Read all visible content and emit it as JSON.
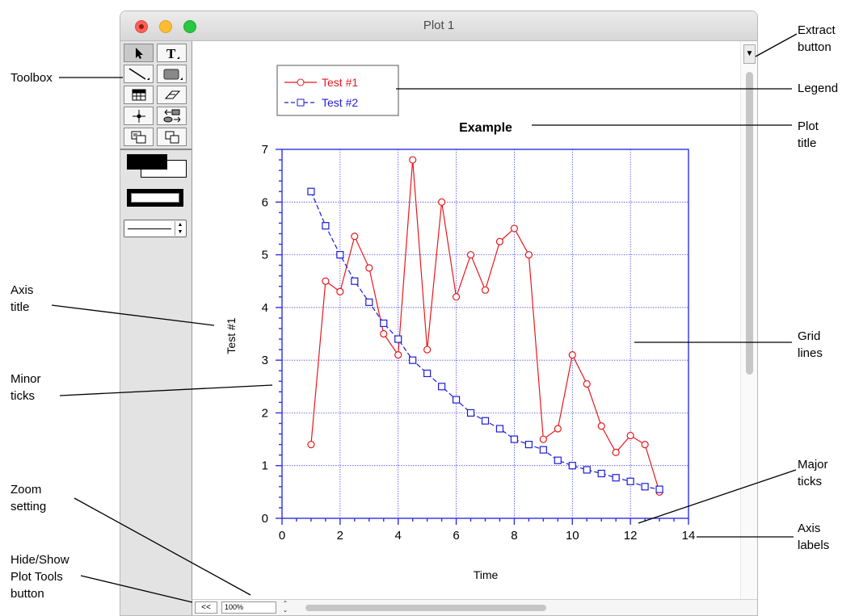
{
  "window": {
    "title": "Plot 1"
  },
  "annotations": {
    "extract_button": "Extract\nbutton",
    "toolbox": "Toolbox",
    "legend": "Legend",
    "plot_title": "Plot\ntitle",
    "axis_title": "Axis\ntitle",
    "grid_lines": "Grid\nlines",
    "minor_ticks": "Minor\nticks",
    "major_ticks": "Major\nticks",
    "zoom_setting": "Zoom\nsetting",
    "axis_labels": "Axis\nlabels",
    "hide_show": "Hide/Show\nPlot Tools\nbutton"
  },
  "bottom": {
    "hide_label": "<<",
    "zoom_value": "100%"
  },
  "icons": {
    "extract": "extract-icon",
    "tools": [
      "arrow-icon",
      "text-icon",
      "line-icon",
      "rectangle-icon",
      "table-icon",
      "eraser-icon",
      "crosshair-icon",
      "link-icon",
      "group-icon",
      "ungroup-icon"
    ]
  },
  "chart_data": {
    "type": "line",
    "title": "Example",
    "xlabel": "Time",
    "ylabel": "Test #1",
    "xlim": [
      0,
      14
    ],
    "ylim": [
      0,
      7
    ],
    "xticks": [
      0,
      2,
      4,
      6,
      8,
      10,
      12,
      14
    ],
    "yticks": [
      0,
      1,
      2,
      3,
      4,
      5,
      6,
      7
    ],
    "grid": true,
    "legend_position": "top-left",
    "series": [
      {
        "name": "Test #1",
        "color": "#e8181c",
        "marker": "circle",
        "x": [
          1,
          1.5,
          2,
          2.5,
          3,
          3.5,
          4,
          4.5,
          5,
          5.5,
          6,
          6.5,
          7,
          7.5,
          8,
          8.5,
          9,
          9.5,
          10,
          10.5,
          11,
          11.5,
          12,
          12.5,
          13
        ],
        "y": [
          1.4,
          4.5,
          4.3,
          5.35,
          4.75,
          3.5,
          3.1,
          6.8,
          3.2,
          6.0,
          4.2,
          5.0,
          4.33,
          5.25,
          5.5,
          5.0,
          1.5,
          1.7,
          3.1,
          2.55,
          1.75,
          1.25,
          1.57,
          1.4,
          0.5
        ]
      },
      {
        "name": "Test #2",
        "color": "#1c1cd8",
        "marker": "square",
        "dash": true,
        "x": [
          1,
          1.5,
          2,
          2.5,
          3,
          3.5,
          4,
          4.5,
          5,
          5.5,
          6,
          6.5,
          7,
          7.5,
          8,
          8.5,
          9,
          9.5,
          10,
          10.5,
          11,
          11.5,
          12,
          12.5,
          13
        ],
        "y": [
          6.2,
          5.55,
          5.0,
          4.5,
          4.1,
          3.7,
          3.4,
          3.0,
          2.75,
          2.5,
          2.25,
          2.0,
          1.85,
          1.7,
          1.5,
          1.4,
          1.3,
          1.1,
          1.0,
          0.92,
          0.85,
          0.77,
          0.7,
          0.6,
          0.55
        ]
      }
    ]
  }
}
